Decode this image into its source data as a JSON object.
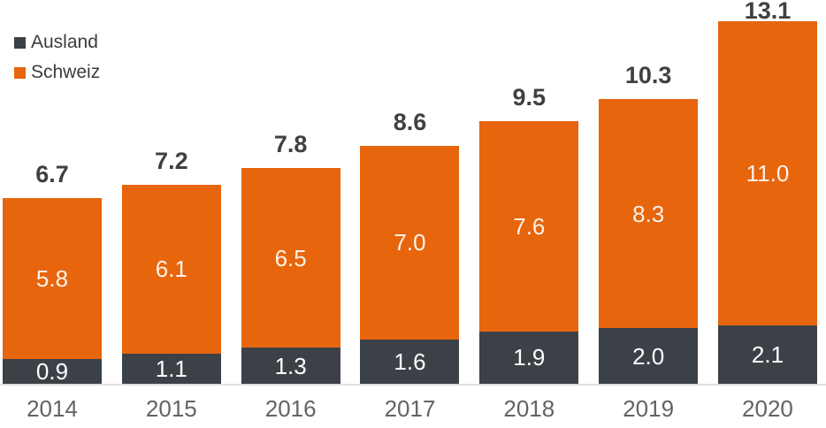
{
  "chart_data": {
    "type": "bar",
    "stacked": true,
    "title": "",
    "xlabel": "",
    "ylabel": "",
    "grid": false,
    "legend_position": "top-left",
    "categories": [
      "2014",
      "2015",
      "2016",
      "2017",
      "2018",
      "2019",
      "2020"
    ],
    "series": [
      {
        "name": "Ausland",
        "color": "#3c4147",
        "value_label_color": "#ffffff",
        "values": [
          0.9,
          1.1,
          1.3,
          1.6,
          1.9,
          2.0,
          2.1
        ]
      },
      {
        "name": "Schweiz",
        "color": "#e7650d",
        "value_label_color": "#fdf2e9",
        "values": [
          5.8,
          6.1,
          6.5,
          7.0,
          7.6,
          8.3,
          11.0
        ]
      }
    ],
    "totals": [
      6.7,
      7.2,
      7.8,
      8.6,
      9.5,
      10.3,
      13.1
    ],
    "colors": {
      "background": "#ffffff",
      "total_label": "#404040",
      "year_label": "#636363",
      "axis_line": "#dedede",
      "legend_text": "#3c3c3c"
    }
  }
}
